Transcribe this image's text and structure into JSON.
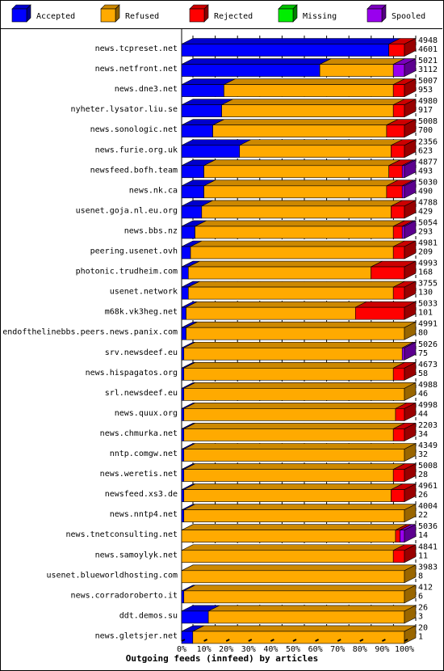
{
  "chart_data": {
    "type": "bar",
    "stacked": true,
    "orientation": "horizontal",
    "scale": "percent",
    "title": "Outgoing feeds (innfeed) by articles",
    "x_ticks": [
      "0%",
      "10%",
      "20%",
      "30%",
      "40%",
      "50%",
      "60%",
      "70%",
      "80%",
      "90%",
      "100%"
    ],
    "xlim": [
      0,
      100
    ],
    "grid": "vertical dashed",
    "legend_placement": "top",
    "legend": [
      {
        "name": "Accepted",
        "color": "#0000ff"
      },
      {
        "name": "Refused",
        "color": "#ffaa00"
      },
      {
        "name": "Rejected",
        "color": "#ff0000"
      },
      {
        "name": "Missing",
        "color": "#00ee00"
      },
      {
        "name": "Spooled",
        "color": "#9900ee"
      }
    ],
    "series_names": [
      "Accepted",
      "Refused",
      "Rejected",
      "Missing",
      "Spooled"
    ],
    "rows": [
      {
        "label": "news.tcpreset.net",
        "total": "4948",
        "accepted": "4601",
        "values": [
          93,
          0,
          7,
          0,
          0
        ]
      },
      {
        "label": "news.netfront.net",
        "total": "5021",
        "accepted": "3112",
        "values": [
          62,
          33,
          0,
          0,
          5
        ]
      },
      {
        "label": "news.dne3.net",
        "total": "5007",
        "accepted": "953",
        "values": [
          19,
          76,
          5,
          0,
          0
        ]
      },
      {
        "label": "nyheter.lysator.liu.se",
        "total": "4980",
        "accepted": "917",
        "values": [
          18,
          77,
          5,
          0,
          0
        ]
      },
      {
        "label": "news.sonologic.net",
        "total": "5008",
        "accepted": "700",
        "values": [
          14,
          78,
          8,
          0,
          0
        ]
      },
      {
        "label": "news.furie.org.uk",
        "total": "2356",
        "accepted": "623",
        "values": [
          26,
          68,
          6,
          0,
          0
        ]
      },
      {
        "label": "newsfeed.bofh.team",
        "total": "4877",
        "accepted": "493",
        "values": [
          10,
          83,
          6,
          0,
          1
        ]
      },
      {
        "label": "news.nk.ca",
        "total": "5030",
        "accepted": "490",
        "values": [
          10,
          82,
          7,
          0,
          1
        ]
      },
      {
        "label": "usenet.goja.nl.eu.org",
        "total": "4788",
        "accepted": "429",
        "values": [
          9,
          85,
          6,
          0,
          0
        ]
      },
      {
        "label": "news.bbs.nz",
        "total": "5054",
        "accepted": "293",
        "values": [
          6,
          89,
          4,
          0,
          1
        ]
      },
      {
        "label": "peering.usenet.ovh",
        "total": "4981",
        "accepted": "209",
        "values": [
          4,
          91,
          5,
          0,
          0
        ]
      },
      {
        "label": "photonic.trudheim.com",
        "total": "4993",
        "accepted": "168",
        "values": [
          3,
          82,
          15,
          0,
          0
        ]
      },
      {
        "label": "usenet.network",
        "total": "3755",
        "accepted": "130",
        "values": [
          3,
          92,
          5,
          0,
          0
        ]
      },
      {
        "label": "m68k.vk3heg.net",
        "total": "5033",
        "accepted": "101",
        "values": [
          2,
          76,
          22,
          0,
          0
        ]
      },
      {
        "label": "endofthelinebbs.peers.news.panix.com",
        "total": "4991",
        "accepted": "80",
        "values": [
          2,
          98,
          0,
          0,
          0
        ]
      },
      {
        "label": "srv.newsdeef.eu",
        "total": "5026",
        "accepted": "75",
        "values": [
          1,
          98,
          0,
          0,
          1
        ]
      },
      {
        "label": "news.hispagatos.org",
        "total": "4673",
        "accepted": "58",
        "values": [
          1,
          94,
          5,
          0,
          0
        ]
      },
      {
        "label": "srl.newsdeef.eu",
        "total": "4988",
        "accepted": "46",
        "values": [
          1,
          99,
          0,
          0,
          0
        ]
      },
      {
        "label": "news.quux.org",
        "total": "4998",
        "accepted": "44",
        "values": [
          1,
          95,
          4,
          0,
          0
        ]
      },
      {
        "label": "news.chmurka.net",
        "total": "2203",
        "accepted": "34",
        "values": [
          1,
          94,
          5,
          0,
          0
        ]
      },
      {
        "label": "nntp.comgw.net",
        "total": "4349",
        "accepted": "32",
        "values": [
          1,
          99,
          0,
          0,
          0
        ]
      },
      {
        "label": "news.weretis.net",
        "total": "5008",
        "accepted": "28",
        "values": [
          1,
          94,
          5,
          0,
          0
        ]
      },
      {
        "label": "newsfeed.xs3.de",
        "total": "4961",
        "accepted": "26",
        "values": [
          1,
          93,
          6,
          0,
          0
        ]
      },
      {
        "label": "news.nntp4.net",
        "total": "4004",
        "accepted": "22",
        "values": [
          1,
          99,
          0,
          0,
          0
        ]
      },
      {
        "label": "news.tnetconsulting.net",
        "total": "5036",
        "accepted": "14",
        "values": [
          0,
          96,
          2,
          0,
          2
        ]
      },
      {
        "label": "news.samoylyk.net",
        "total": "4841",
        "accepted": "11",
        "values": [
          0,
          95,
          5,
          0,
          0
        ]
      },
      {
        "label": "usenet.blueworldhosting.com",
        "total": "3983",
        "accepted": "8",
        "values": [
          0,
          100,
          0,
          0,
          0
        ]
      },
      {
        "label": "news.corradoroberto.it",
        "total": "412",
        "accepted": "6",
        "values": [
          1,
          99,
          0,
          0,
          0
        ]
      },
      {
        "label": "ddt.demos.su",
        "total": "26",
        "accepted": "3",
        "values": [
          12,
          88,
          0,
          0,
          0
        ]
      },
      {
        "label": "news.gletsjer.net",
        "total": "20",
        "accepted": "1",
        "values": [
          5,
          95,
          0,
          0,
          0
        ]
      }
    ]
  }
}
